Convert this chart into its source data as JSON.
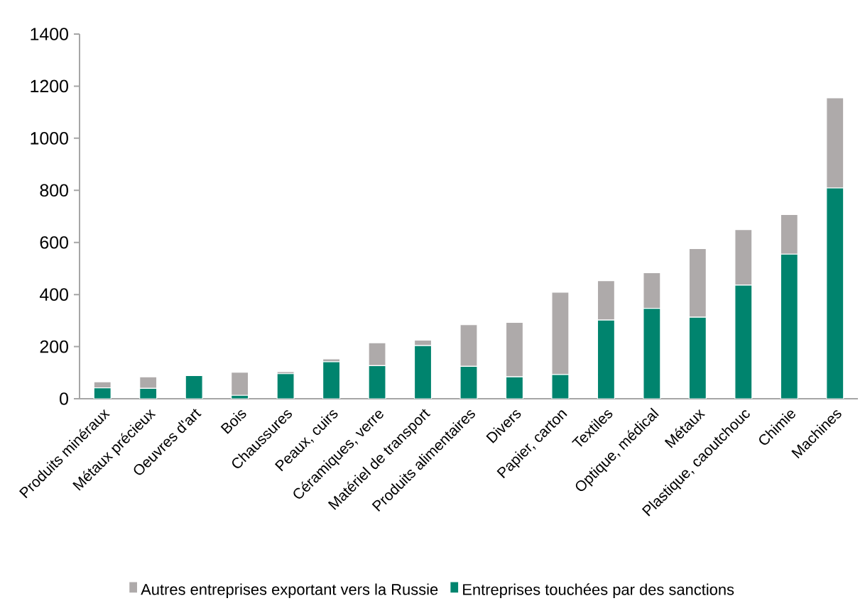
{
  "chart_data": {
    "type": "bar",
    "stacked": true,
    "categories": [
      "Produits minéraux",
      "Métaux précieux",
      "Oeuvres d'art",
      "Bois",
      "Chaussures",
      "Peaux, cuirs",
      "Céramiques, verre",
      "Matériel de transport",
      "Produits alimentaires",
      "Divers",
      "Papier, carton",
      "Textiles",
      "Optique, médical",
      "Métaux",
      "Plastique, caoutchouc",
      "Chimie",
      "Machines"
    ],
    "series": [
      {
        "name": "Entreprises touchées par des sanctions",
        "color": "#00846e",
        "values": [
          42,
          40,
          89,
          13,
          96,
          142,
          127,
          204,
          124,
          84,
          93,
          302,
          347,
          313,
          436,
          555,
          809
        ]
      },
      {
        "name": "Autres entreprises exportant vers la Russie",
        "color": "#aeaaaa",
        "values": [
          23,
          44,
          0,
          89,
          8,
          11,
          88,
          21,
          160,
          209,
          316,
          151,
          137,
          263,
          213,
          152,
          346
        ]
      }
    ],
    "ylim": [
      0,
      1400
    ],
    "yticks": [
      0,
      200,
      400,
      600,
      800,
      1000,
      1200,
      1400
    ],
    "legend": "bottom"
  }
}
